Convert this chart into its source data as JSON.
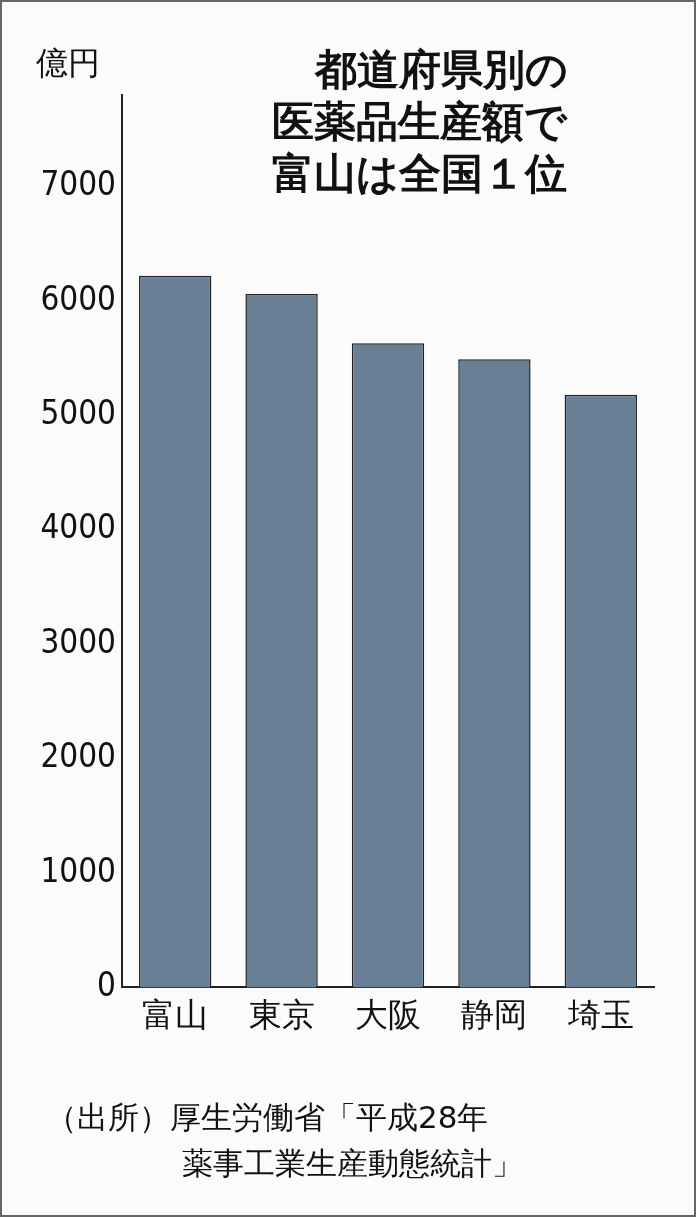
{
  "chart_data": {
    "type": "bar",
    "title": "都道府県別の医薬品生産額で富山は全国１位",
    "ylabel": "億円",
    "categories": [
      "富山",
      "東京",
      "大阪",
      "静岡",
      "埼玉"
    ],
    "values": [
      6220,
      6060,
      5630,
      5490,
      5180
    ],
    "color": "#687f96",
    "ylim": [
      0,
      7800
    ],
    "yticks": [
      0,
      1000,
      2000,
      3000,
      4000,
      5000,
      6000,
      7000
    ],
    "grid": false,
    "annotations": [
      "（出所）厚生労働省「平成28年",
      "薬事工業生産動態統計」"
    ]
  }
}
